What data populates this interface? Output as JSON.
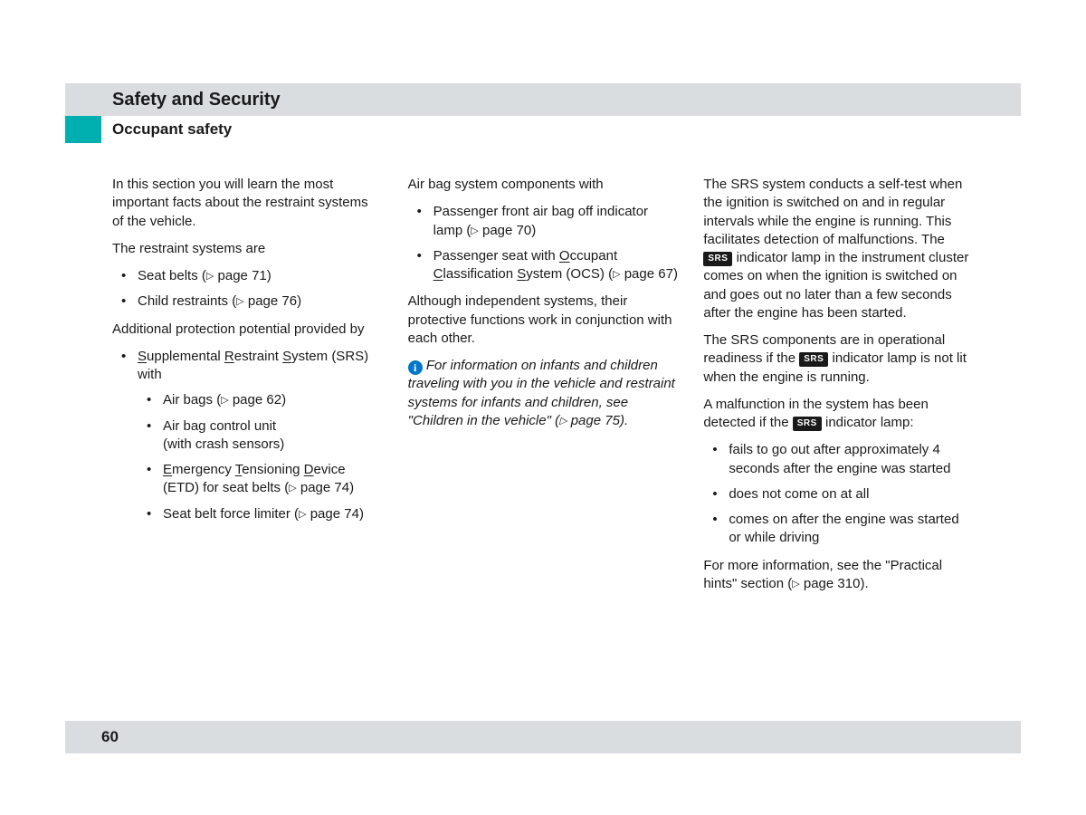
{
  "colors": {
    "header_bg": "#d9dde0",
    "teal": "#00b0b0",
    "info_blue": "#0077c8",
    "text": "#1a1a1a",
    "badge_bg": "#1a1a1a"
  },
  "typography": {
    "body_fontsize": 15,
    "h1_fontsize": 20,
    "h2_fontsize": 17,
    "pagenum_fontsize": 17
  },
  "header": {
    "chapter": "Safety and Security",
    "section": "Occupant safety"
  },
  "page_number": "60",
  "triangle_glyph": "▷",
  "srs_badge": "SRS",
  "col1": {
    "intro": "In this section you will learn the most important facts about the restraint systems of the vehicle.",
    "restraint_lead": "The restraint systems are",
    "restraints": {
      "seatbelts": {
        "label": "Seat belts",
        "page": "71"
      },
      "child": {
        "label": "Child restraints",
        "page": "76"
      }
    },
    "addl_lead": "Additional protection potential provided by",
    "srs_lead_pre": "S",
    "srs_lead_mid1": "upplemental ",
    "srs_lead_r": "R",
    "srs_lead_mid2": "estraint ",
    "srs_lead_s": "S",
    "srs_lead_post": "ystem (SRS) with",
    "srs_items": {
      "airbags": {
        "label": "Air bags",
        "page": "62"
      },
      "acu1": "Air bag control unit",
      "acu2": "(with crash sensors)",
      "etd_e": "E",
      "etd_mid1": "mergency ",
      "etd_t": "T",
      "etd_mid2": "ensioning ",
      "etd_d": "D",
      "etd_post": "evice (ETD) for seat belts",
      "etd_page": "74",
      "limiter": {
        "label": "Seat belt force limiter",
        "page": "74"
      }
    }
  },
  "col2": {
    "lead": "Air bag system components with",
    "items": {
      "indicator": {
        "label": "Passenger front air bag off indicator lamp",
        "page": "70"
      },
      "ocs_pre": "Passenger seat with ",
      "ocs_o": "O",
      "ocs_mid1": "ccupant ",
      "ocs_c": "C",
      "ocs_mid2": "lassification ",
      "ocs_s": "S",
      "ocs_post": "ystem (OCS)",
      "ocs_page": "67"
    },
    "note": "Although independent systems, their protective functions work in conjunction with each other.",
    "info": "For information on infants and children traveling with you in the vehicle and restraint systems for infants and children, see \"Children in the vehicle\"",
    "info_page": "75"
  },
  "col3": {
    "p1_pre": "The SRS system conducts a self-test when the ignition is switched on and in regular intervals while the engine is running. This facilitates detection of malfunctions. The ",
    "p1_post": " indicator lamp in the instrument cluster comes on when the ignition is switched on and goes out no later than a few seconds after the engine has been started.",
    "p2_pre": "The SRS components are in operational readiness if the ",
    "p2_post": " indicator lamp is not lit when the engine is running.",
    "p3_pre": "A malfunction in the system has been detected if the ",
    "p3_post": " indicator lamp:",
    "faults": {
      "a": "fails to go out after approximately 4 seconds after the engine was started",
      "b": "does not come on at all",
      "c": "comes on after the engine was started or while driving"
    },
    "more_pre": "For more information, see the \"Practical hints\" section",
    "more_page": "310"
  }
}
